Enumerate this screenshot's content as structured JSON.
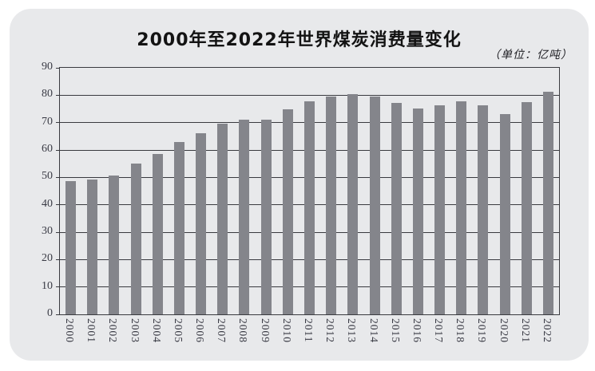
{
  "chart": {
    "title": "2000年至2022年世界煤炭消费量变化",
    "unit_label": "（单位：亿吨）"
  },
  "chart_data": {
    "type": "bar",
    "title": "2000年至2022年世界煤炭消费量变化",
    "subtitle": "（单位：亿吨）",
    "xlabel": "",
    "ylabel": "",
    "categories": [
      "2000",
      "2001",
      "2002",
      "2003",
      "2004",
      "2005",
      "2006",
      "2007",
      "2008",
      "2009",
      "2010",
      "2011",
      "2012",
      "2013",
      "2014",
      "2015",
      "2016",
      "2017",
      "2018",
      "2019",
      "2020",
      "2021",
      "2022"
    ],
    "values": [
      48.5,
      49.3,
      50.7,
      55.1,
      58.5,
      62.8,
      66.1,
      69.6,
      71.1,
      71.0,
      74.8,
      77.9,
      79.5,
      80.5,
      79.5,
      77.3,
      75.2,
      76.4,
      77.8,
      76.3,
      73.2,
      77.6,
      81.2
    ],
    "ylim": [
      0,
      90
    ],
    "y_ticks": [
      0,
      10,
      20,
      30,
      40,
      50,
      60,
      70,
      80,
      90
    ],
    "grid": "horizontal",
    "legend": "none",
    "bar_color": "#84858b",
    "card_background": "#e8e9eb",
    "grid_color": "#393a3f"
  }
}
